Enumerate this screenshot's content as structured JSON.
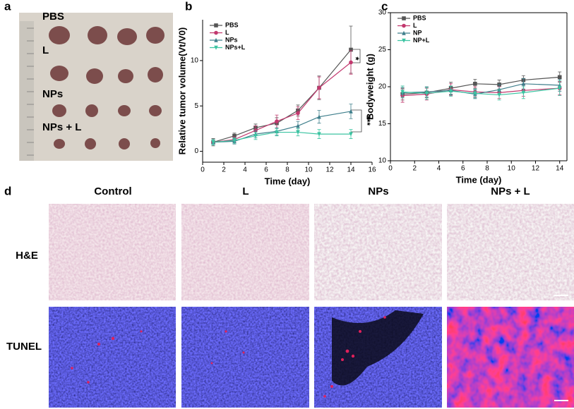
{
  "panel_labels": [
    "a",
    "b",
    "c",
    "d"
  ],
  "panel_a": {
    "groups": [
      "PBS",
      "L",
      "NPs",
      "NPs + L"
    ]
  },
  "panel_d": {
    "columns": [
      "Control",
      "L",
      "NPs",
      "NPs + L"
    ],
    "rows": [
      "H&E",
      "TUNEL"
    ]
  },
  "chart_data": [
    {
      "type": "line",
      "xlabel": "Time (day)",
      "ylabel": "Relative tumor volume(Vt/V0)",
      "x": [
        1,
        3,
        5,
        7,
        9,
        11,
        14
      ],
      "xlim": [
        0,
        16
      ],
      "xticks": [
        0,
        2,
        4,
        6,
        8,
        10,
        12,
        14,
        16
      ],
      "ylim": [
        -1.2,
        14.5
      ],
      "yticks": [
        0,
        5,
        10
      ],
      "legend": "upper left",
      "annotations": [
        "*",
        "***"
      ],
      "series": [
        {
          "name": "PBS",
          "color": "#555555",
          "marker": "square",
          "values": [
            1,
            1.7,
            2.6,
            3.1,
            4.5,
            7,
            11.2
          ],
          "errors": [
            0.4,
            0.3,
            0.4,
            0.6,
            0.6,
            1.3,
            2.6
          ]
        },
        {
          "name": "L",
          "color": "#c2386e",
          "marker": "circle",
          "values": [
            1,
            1.3,
            2.3,
            3.3,
            4.2,
            7,
            9.8
          ],
          "errors": [
            0.3,
            0.3,
            0.5,
            0.7,
            0.7,
            1.2,
            1.3
          ]
        },
        {
          "name": "NPs",
          "color": "#3f7f8c",
          "marker": "triangle-up",
          "values": [
            1,
            1.1,
            1.9,
            2.2,
            2.8,
            3.8,
            4.4
          ],
          "errors": [
            0.3,
            0.3,
            0.4,
            0.4,
            0.5,
            0.7,
            0.8
          ]
        },
        {
          "name": "NPs+L",
          "color": "#3cc4a2",
          "marker": "triangle-down",
          "values": [
            1,
            1.2,
            1.7,
            2.1,
            2.1,
            1.9,
            1.9
          ],
          "errors": [
            0.3,
            0.3,
            0.4,
            0.4,
            0.4,
            0.5,
            0.5
          ]
        }
      ]
    },
    {
      "type": "line",
      "xlabel": "Time (day)",
      "ylabel": "Bodyweight (g)",
      "x": [
        1,
        3,
        5,
        7,
        9,
        11,
        14
      ],
      "xlim": [
        0,
        14.6
      ],
      "xticks": [
        0,
        2,
        4,
        6,
        8,
        10,
        12,
        14
      ],
      "ylim": [
        10,
        30
      ],
      "yticks": [
        10,
        15,
        20,
        25,
        30
      ],
      "legend": "upper left",
      "series": [
        {
          "name": "PBS",
          "color": "#555555",
          "marker": "square",
          "values": [
            19,
            19.2,
            19.8,
            20.4,
            20.3,
            20.9,
            21.3
          ],
          "errors": [
            0.8,
            0.7,
            0.8,
            0.6,
            0.6,
            0.6,
            0.7
          ]
        },
        {
          "name": "L",
          "color": "#c2386e",
          "marker": "circle",
          "values": [
            18.8,
            19,
            19.6,
            19.3,
            19.2,
            19.5,
            19.8
          ],
          "errors": [
            0.9,
            0.8,
            0.8,
            0.7,
            0.8,
            0.8,
            0.9
          ]
        },
        {
          "name": "NP",
          "color": "#3f7f8c",
          "marker": "triangle-up",
          "values": [
            19.2,
            19.3,
            19.5,
            19,
            19.6,
            20.4,
            20.2
          ],
          "errors": [
            0.7,
            0.7,
            0.6,
            0.6,
            0.7,
            0.7,
            0.8
          ]
        },
        {
          "name": "NP+L",
          "color": "#3cc4a2",
          "marker": "triangle-down",
          "values": [
            19.3,
            19.1,
            19.4,
            19.1,
            18.9,
            19.2,
            19.8
          ],
          "errors": [
            0.8,
            0.8,
            0.7,
            0.6,
            0.7,
            0.8,
            1.0
          ]
        }
      ]
    }
  ]
}
